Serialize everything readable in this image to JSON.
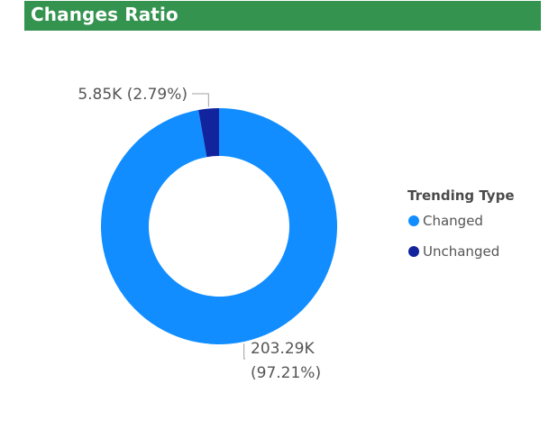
{
  "header": {
    "title": "Changes Ratio"
  },
  "legend": {
    "title": "Trending Type",
    "items": [
      {
        "label": "Changed",
        "color": "#118dff"
      },
      {
        "label": "Unchanged",
        "color": "#12239e"
      }
    ]
  },
  "chart_data": {
    "type": "pie",
    "variant": "donut",
    "slices": [
      {
        "name": "Changed",
        "value": 203290,
        "percent": 97.21,
        "label_value": "203.29K",
        "label_percent": "(97.21%)",
        "color": "#118dff"
      },
      {
        "name": "Unchanged",
        "value": 5850,
        "percent": 2.79,
        "label_value": "5.85K",
        "label_percent": "(2.79%)",
        "color": "#12239e"
      }
    ],
    "legend_title": "Trending Type",
    "legend_position": "right"
  }
}
